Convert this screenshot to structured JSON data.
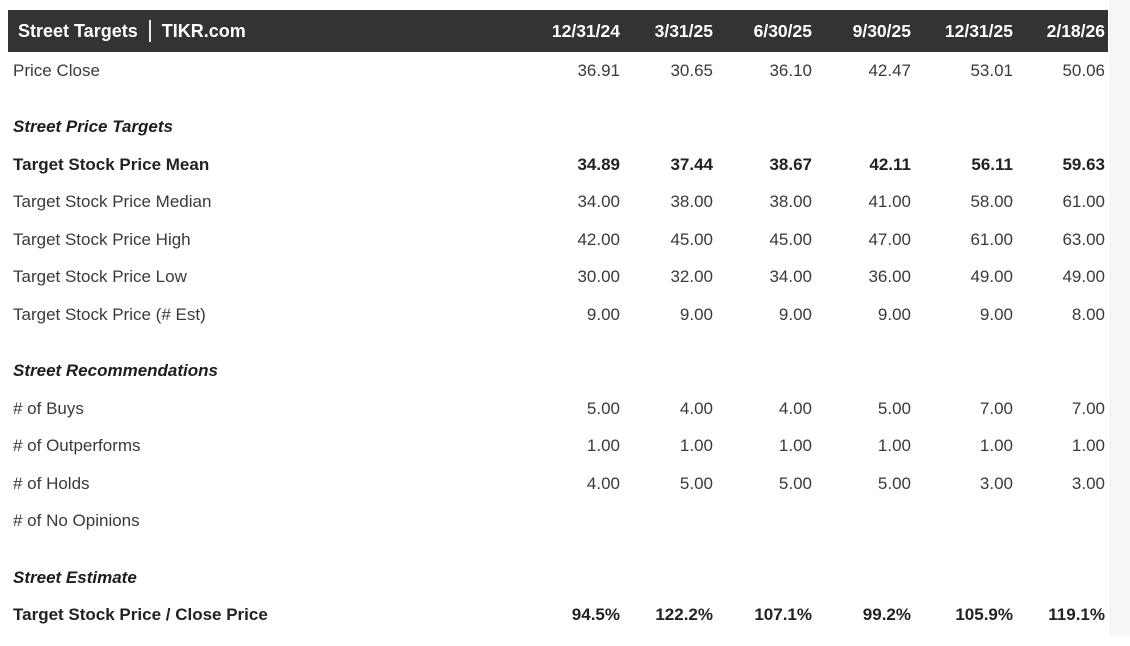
{
  "header": {
    "title": "Street Targets",
    "separator": "|",
    "brand": "TIKR.com",
    "columns": [
      "12/31/24",
      "3/31/25",
      "6/30/25",
      "9/30/25",
      "12/31/25",
      "2/18/26"
    ]
  },
  "rows": [
    {
      "label": "Price Close",
      "style": "normal",
      "values": [
        "36.91",
        "30.65",
        "36.10",
        "42.47",
        "53.01",
        "50.06"
      ]
    },
    {
      "label": "Street Price Targets",
      "style": "section",
      "values": [
        "",
        "",
        "",
        "",
        "",
        ""
      ]
    },
    {
      "label": "Target Stock Price Mean",
      "style": "bold",
      "values": [
        "34.89",
        "37.44",
        "38.67",
        "42.11",
        "56.11",
        "59.63"
      ]
    },
    {
      "label": "Target Stock Price Median",
      "style": "normal",
      "values": [
        "34.00",
        "38.00",
        "38.00",
        "41.00",
        "58.00",
        "61.00"
      ]
    },
    {
      "label": "Target Stock Price High",
      "style": "normal",
      "values": [
        "42.00",
        "45.00",
        "45.00",
        "47.00",
        "61.00",
        "63.00"
      ]
    },
    {
      "label": "Target Stock Price Low",
      "style": "normal",
      "values": [
        "30.00",
        "32.00",
        "34.00",
        "36.00",
        "49.00",
        "49.00"
      ]
    },
    {
      "label": "Target Stock Price (# Est)",
      "style": "normal",
      "values": [
        "9.00",
        "9.00",
        "9.00",
        "9.00",
        "9.00",
        "8.00"
      ]
    },
    {
      "label": "Street Recommendations",
      "style": "section",
      "values": [
        "",
        "",
        "",
        "",
        "",
        ""
      ]
    },
    {
      "label": "# of Buys",
      "style": "normal",
      "values": [
        "5.00",
        "4.00",
        "4.00",
        "5.00",
        "7.00",
        "7.00"
      ]
    },
    {
      "label": "# of Outperforms",
      "style": "normal",
      "values": [
        "1.00",
        "1.00",
        "1.00",
        "1.00",
        "1.00",
        "1.00"
      ]
    },
    {
      "label": "# of Holds",
      "style": "normal",
      "values": [
        "4.00",
        "5.00",
        "5.00",
        "5.00",
        "3.00",
        "3.00"
      ]
    },
    {
      "label": "# of No Opinions",
      "style": "normal",
      "values": [
        "",
        "",
        "",
        "",
        "",
        ""
      ]
    },
    {
      "label": "Street Estimate",
      "style": "section",
      "values": [
        "",
        "",
        "",
        "",
        "",
        ""
      ]
    },
    {
      "label": "Target Stock Price / Close Price",
      "style": "bold",
      "values": [
        "94.5%",
        "122.2%",
        "107.1%",
        "99.2%",
        "105.9%",
        "119.1%"
      ]
    }
  ],
  "colors": {
    "header_bg": "#333333",
    "header_text": "#ffffff",
    "body_text": "#3a3a3a",
    "bold_text": "#222222",
    "scroll_track_bg": "#f8f8f8"
  }
}
